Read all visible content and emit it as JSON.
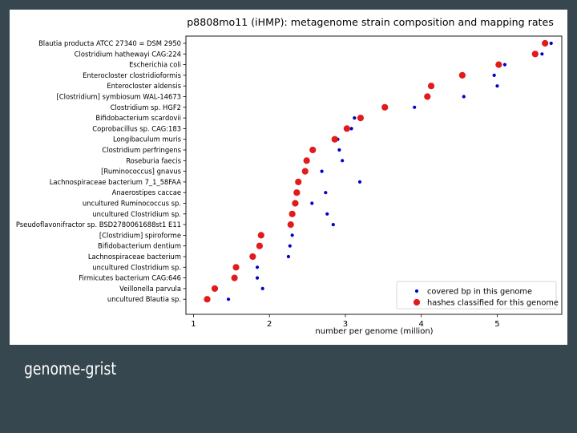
{
  "caption": "genome-grist",
  "chart_data": {
    "type": "scatter",
    "title": "p8808mo11 (iHMP): metagenome strain composition and mapping rates",
    "xlabel": "number per genome (million)",
    "ylabel": "",
    "xlim": [
      0.9,
      5.85
    ],
    "xticks": [
      1,
      2,
      3,
      4,
      5
    ],
    "grid": false,
    "legend_position": "lower-right",
    "categories": [
      "Blautia producta ATCC 27340 = DSM 2950",
      "Clostridium hathewayi CAG:224",
      "Escherichia coli",
      "Enterocloster clostridioformis",
      "Enterocloster aldensis",
      "[Clostridium] symbiosum WAL-14673",
      "Clostridium sp. HGF2",
      "Bifidobacterium scardovii",
      "Coprobacillus sp. CAG:183",
      "Longibaculum muris",
      "Clostridium perfringens",
      "Roseburia faecis",
      "[Ruminococcus] gnavus",
      "Lachnospiraceae bacterium 7_1_58FAA",
      "Anaerostipes caccae",
      "uncultured Ruminococcus sp.",
      "uncultured Clostridium sp.",
      "Pseudoflavonifractor sp. BSD2780061688st1 E11",
      "[Clostridium] spiroforme",
      "Bifidobacterium dentium",
      "Lachnospiraceae bacterium",
      "uncultured Clostridium sp.",
      "Firmicutes bacterium CAG:646",
      "Veillonella parvula",
      "uncultured Blautia sp."
    ],
    "series": [
      {
        "name": "covered bp in this genome",
        "color": "#0000cc",
        "marker": "small-dot",
        "values": [
          5.71,
          5.59,
          5.1,
          4.96,
          5.0,
          4.56,
          3.91,
          3.12,
          3.08,
          2.9,
          2.92,
          2.96,
          2.69,
          3.19,
          2.74,
          2.56,
          2.76,
          2.84,
          2.3,
          2.27,
          2.25,
          1.84,
          1.84,
          1.91,
          1.46
        ]
      },
      {
        "name": "hashes classified for this genome",
        "color": "#e31a1c",
        "marker": "large-dot",
        "values": [
          5.63,
          5.5,
          5.02,
          4.54,
          4.13,
          4.08,
          3.52,
          3.2,
          3.02,
          2.86,
          2.57,
          2.49,
          2.47,
          2.38,
          2.36,
          2.34,
          2.3,
          2.28,
          1.89,
          1.87,
          1.78,
          1.56,
          1.54,
          1.28,
          1.18
        ]
      }
    ]
  }
}
